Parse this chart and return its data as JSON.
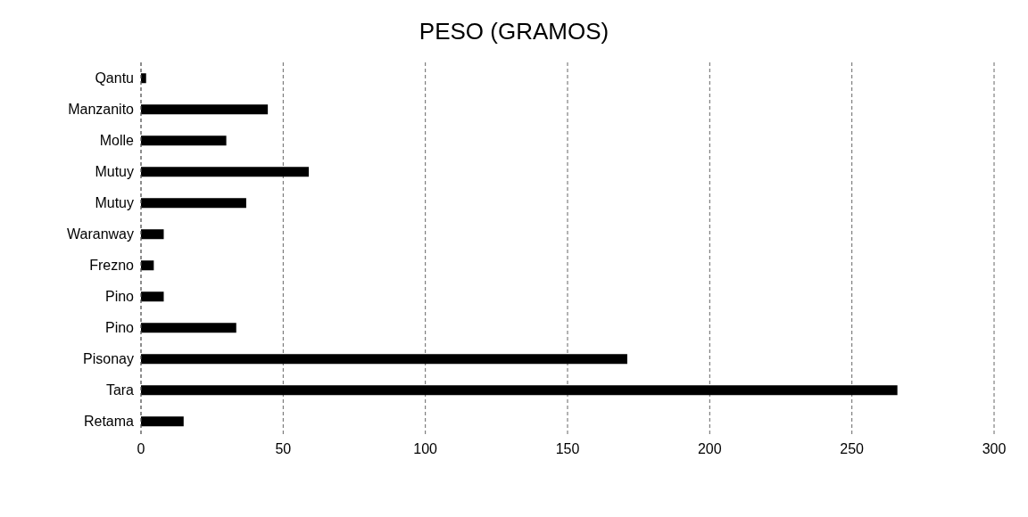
{
  "chart_data": {
    "type": "bar",
    "orientation": "horizontal",
    "title": "PESO (GRAMOS)",
    "categories": [
      "Qantu",
      "Manzanito",
      "Molle",
      "Mutuy",
      "Mutuy",
      "Waranway",
      "Frezno",
      "Pino",
      "Pino",
      "Pisonay",
      "Tara",
      "Retama"
    ],
    "values": [
      1.8,
      44.6,
      30,
      59,
      37,
      8,
      4.5,
      8,
      33.5,
      171,
      266,
      15
    ],
    "color": "#000000",
    "xlim": [
      0,
      300
    ],
    "xticks": [
      0,
      50,
      100,
      150,
      200,
      250,
      300
    ],
    "grid": "x"
  }
}
